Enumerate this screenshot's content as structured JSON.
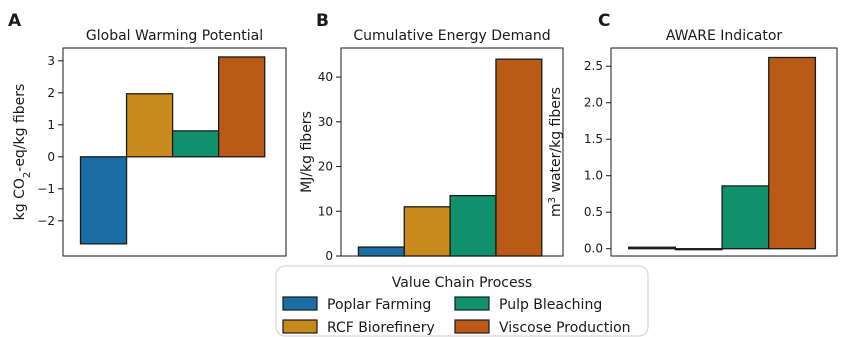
{
  "chart_data": [
    {
      "type": "bar",
      "panel_letter": "A",
      "title": "Global Warming Potential",
      "ylabel": "kg CO2-eq/kg fibers",
      "categories": [
        "Poplar Farming",
        "RCF Biorefinery",
        "Pulp Bleaching",
        "Viscose Production"
      ],
      "values": [
        -2.72,
        1.97,
        0.81,
        3.12
      ],
      "ylim": [
        -3.1,
        3.4
      ],
      "yticks": [
        -2,
        -1,
        0,
        1,
        2,
        3
      ],
      "ytick_labels": [
        "−2",
        "−1",
        "0",
        "1",
        "2",
        "3"
      ]
    },
    {
      "type": "bar",
      "panel_letter": "B",
      "title": "Cumulative Energy Demand",
      "ylabel": "MJ/kg fibers",
      "categories": [
        "Poplar Farming",
        "RCF Biorefinery",
        "Pulp Bleaching",
        "Viscose Production"
      ],
      "values": [
        2.0,
        11.0,
        13.5,
        44.0
      ],
      "ylim": [
        0,
        46.5
      ],
      "yticks": [
        0,
        10,
        20,
        30,
        40
      ],
      "ytick_labels": [
        "0",
        "10",
        "20",
        "30",
        "40"
      ]
    },
    {
      "type": "bar",
      "panel_letter": "C",
      "title": "AWARE Indicator",
      "ylabel": "m3 water/kg fibers",
      "categories": [
        "Poplar Farming",
        "RCF Biorefinery",
        "Pulp Bleaching",
        "Viscose Production"
      ],
      "values": [
        0.02,
        -0.01,
        0.86,
        2.62
      ],
      "ylim": [
        -0.1,
        2.75
      ],
      "yticks": [
        0,
        0.5,
        1,
        1.5,
        2,
        2.5
      ],
      "ytick_labels": [
        "0.0",
        "0.5",
        "1.0",
        "1.5",
        "2.0",
        "2.5"
      ]
    }
  ],
  "legend": {
    "title": "Value Chain Process",
    "placement": "bottom-center",
    "items": [
      {
        "label": "Poplar Farming",
        "color": "#1a6ea5"
      },
      {
        "label": "RCF Biorefinery",
        "color": "#c88a1c"
      },
      {
        "label": "Pulp Bleaching",
        "color": "#10916b"
      },
      {
        "label": "Viscose Production",
        "color": "#ba5a17"
      }
    ]
  }
}
